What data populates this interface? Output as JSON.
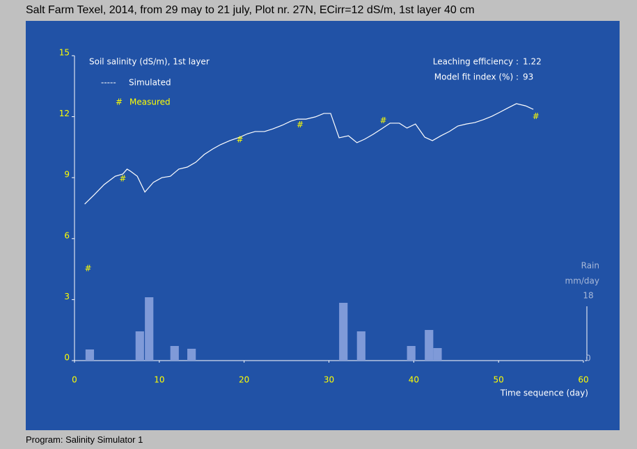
{
  "window_title": "Salt Farm Texel, 2014, from 29 may to 21 july, Plot nr. 27N, ECirr=12 dS/m, 1st layer 40 cm",
  "footer": "Program: Salinity Simulator 1",
  "chart_data": {
    "type": "line",
    "title": "Soil salinity (dS/m), 1st layer",
    "x_label": "Time sequence (day)",
    "y2_label": [
      "Rain",
      "mm/day"
    ],
    "xlim": [
      0,
      60
    ],
    "xticks": [
      0,
      10,
      20,
      30,
      40,
      50,
      60
    ],
    "ylim": [
      0,
      15
    ],
    "yticks": [
      0,
      3,
      6,
      9,
      12,
      15
    ],
    "y2lim": [
      0,
      18
    ],
    "y2ticks": [
      0,
      18
    ],
    "grid": false,
    "annotations": [
      {
        "label": "Leaching efficiency :",
        "value": 1.22
      },
      {
        "label": "Model fit index (%) :",
        "value": 93
      }
    ],
    "series": [
      {
        "name": "Simulated",
        "marker": "-----",
        "color": "#ffffff",
        "x": [
          1.2,
          2.3,
          3.5,
          4.8,
          5.7,
          6.2,
          6.6,
          7.4,
          8.3,
          9.3,
          10.3,
          11.3,
          12.3,
          13.3,
          14.3,
          15.3,
          16.3,
          17.2,
          18.3,
          19.5,
          20.4,
          21.3,
          22.4,
          23.4,
          24.5,
          25.5,
          26.3,
          27.3,
          28.4,
          29.4,
          30.2,
          31.2,
          32.3,
          33.3,
          34.2,
          35.2,
          36.2,
          37.2,
          38.3,
          39.2,
          40.2,
          41.3,
          42.2,
          43.2,
          44.2,
          45.2,
          46.2,
          47.2,
          48.2,
          49.2,
          50.2,
          51.1,
          52.1,
          53.2,
          54.1
        ],
        "values": [
          7.7,
          8.15,
          8.66,
          9.07,
          9.18,
          9.42,
          9.32,
          9.07,
          8.29,
          8.77,
          9.0,
          9.07,
          9.42,
          9.52,
          9.76,
          10.14,
          10.41,
          10.62,
          10.82,
          10.99,
          11.16,
          11.27,
          11.27,
          11.4,
          11.58,
          11.78,
          11.88,
          11.88,
          11.99,
          12.16,
          12.16,
          10.96,
          11.06,
          10.72,
          10.89,
          11.13,
          11.4,
          11.68,
          11.68,
          11.44,
          11.64,
          10.99,
          10.82,
          11.06,
          11.27,
          11.54,
          11.64,
          11.71,
          11.85,
          12.02,
          12.23,
          12.43,
          12.64,
          12.53,
          12.36
        ]
      },
      {
        "name": "Measured",
        "marker": "#",
        "color": "#ffff00",
        "x": [
          1.6,
          5.7,
          19.5,
          26.6,
          36.4,
          54.4
        ],
        "values": [
          4.52,
          8.94,
          10.86,
          11.6,
          11.8,
          12.0
        ]
      },
      {
        "type": "bar",
        "axis": "y2",
        "color": "#7f9ad8",
        "x": [
          1.8,
          7.7,
          8.8,
          11.8,
          13.8,
          31.7,
          33.8,
          39.7,
          41.8,
          42.8
        ],
        "values": [
          3.2,
          8.4,
          18.2,
          4.2,
          3.4,
          16.6,
          8.4,
          4.2,
          8.8,
          3.6
        ]
      }
    ]
  }
}
